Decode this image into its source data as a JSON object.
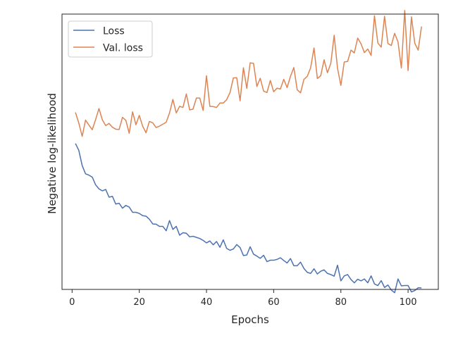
{
  "chart_data": {
    "type": "line",
    "title": "",
    "xlabel": "Epochs",
    "ylabel": "Negative log-likelihood",
    "xlim": [
      -3,
      109
    ],
    "ylim": [
      0,
      100
    ],
    "yticks_shown": false,
    "xticks": [
      0,
      20,
      40,
      60,
      80,
      100
    ],
    "xtick_labels": [
      "0",
      "20",
      "40",
      "60",
      "80",
      "100"
    ],
    "grid": false,
    "legend_position": "upper left",
    "series": [
      {
        "name": "Loss",
        "color": "#4c72b0",
        "x": [
          1,
          2,
          3,
          4,
          5,
          6,
          7,
          8,
          9,
          10,
          11,
          12,
          13,
          14,
          15,
          16,
          17,
          18,
          19,
          20,
          21,
          22,
          23,
          24,
          25,
          26,
          27,
          28,
          29,
          30,
          31,
          32,
          33,
          34,
          35,
          36,
          37,
          38,
          39,
          40,
          41,
          42,
          43,
          44,
          45,
          46,
          47,
          48,
          49,
          50,
          51,
          52,
          53,
          54,
          55,
          56,
          57,
          58,
          59,
          60,
          61,
          62,
          63,
          64,
          65,
          66,
          67,
          68,
          69,
          70,
          71,
          72,
          73,
          74,
          75,
          76,
          77,
          78,
          79,
          80,
          81,
          82,
          83,
          84,
          85,
          86,
          87,
          88,
          89,
          90,
          91,
          92,
          93,
          94,
          95,
          96,
          97,
          98,
          99,
          100,
          101,
          102,
          103,
          104
        ],
        "y": [
          53.0,
          50.5,
          45.0,
          42.0,
          41.5,
          40.8,
          38.0,
          36.5,
          35.8,
          36.3,
          33.5,
          33.8,
          31.0,
          31.3,
          29.5,
          30.5,
          29.9,
          28.0,
          28.0,
          27.6,
          26.8,
          26.6,
          25.5,
          23.8,
          23.7,
          22.9,
          22.9,
          21.3,
          25.0,
          21.8,
          22.9,
          19.7,
          20.6,
          20.4,
          19.1,
          19.3,
          18.9,
          18.5,
          17.8,
          16.9,
          17.6,
          16.2,
          17.4,
          15.3,
          18.0,
          14.9,
          14.2,
          14.7,
          16.3,
          15.2,
          12.3,
          12.5,
          15.5,
          12.8,
          12.1,
          11.3,
          12.4,
          10.1,
          10.6,
          10.6,
          10.9,
          11.5,
          10.5,
          9.6,
          11.2,
          8.6,
          8.6,
          9.9,
          7.6,
          6.2,
          5.8,
          7.5,
          5.6,
          6.6,
          7.1,
          5.8,
          5.4,
          4.8,
          8.8,
          3.1,
          4.9,
          5.4,
          3.6,
          2.4,
          3.7,
          3.1,
          3.8,
          2.4,
          4.9,
          2.0,
          1.4,
          3.2,
          0.7,
          1.6,
          -0.2,
          -1.2,
          3.8,
          1.3,
          1.4,
          1.4,
          -0.9,
          -0.4,
          0.6,
          0.5
        ]
      },
      {
        "name": "Val. loss",
        "color": "#dd8452",
        "x": [
          1,
          2,
          3,
          4,
          5,
          6,
          7,
          8,
          9,
          10,
          11,
          12,
          13,
          14,
          15,
          16,
          17,
          18,
          19,
          20,
          21,
          22,
          23,
          24,
          25,
          26,
          27,
          28,
          29,
          30,
          31,
          32,
          33,
          34,
          35,
          36,
          37,
          38,
          39,
          40,
          41,
          42,
          43,
          44,
          45,
          46,
          47,
          48,
          49,
          50,
          51,
          52,
          53,
          54,
          55,
          56,
          57,
          58,
          59,
          60,
          61,
          62,
          63,
          64,
          65,
          66,
          67,
          68,
          69,
          70,
          71,
          72,
          73,
          74,
          75,
          76,
          77,
          78,
          79,
          80,
          81,
          82,
          83,
          84,
          85,
          86,
          87,
          88,
          89,
          90,
          91,
          92,
          93,
          94,
          95,
          96,
          97,
          98,
          99,
          100,
          101,
          102,
          103,
          104
        ],
        "y": [
          64.3,
          60.4,
          55.6,
          61.5,
          59.7,
          58.0,
          61.7,
          65.7,
          61.6,
          59.5,
          60.3,
          58.9,
          58.2,
          58.1,
          62.5,
          61.4,
          56.7,
          64.5,
          59.8,
          63.2,
          59.3,
          56.9,
          61.0,
          60.5,
          58.8,
          59.3,
          60.0,
          60.7,
          64.1,
          69.0,
          64.1,
          66.5,
          66.1,
          71.0,
          65.2,
          65.5,
          69.5,
          69.5,
          65.0,
          77.6,
          66.5,
          66.4,
          66.1,
          67.7,
          67.7,
          68.9,
          71.5,
          76.8,
          76.9,
          68.5,
          80.5,
          73.0,
          82.3,
          82.1,
          73.7,
          76.7,
          72.0,
          71.5,
          75.9,
          71.8,
          73.1,
          72.8,
          76.3,
          73.3,
          77.4,
          80.6,
          72.5,
          71.4,
          76.3,
          77.4,
          80.5,
          87.7,
          76.6,
          77.6,
          83.4,
          78.7,
          82.1,
          92.3,
          80.3,
          74.1,
          82.6,
          82.8,
          86.9,
          85.9,
          91.3,
          89.2,
          86.0,
          87.3,
          85.0,
          99.4,
          89.5,
          88.0,
          99.2,
          89.3,
          88.6,
          93.0,
          89.9,
          80.4,
          101.3,
          79.5,
          99.0,
          89.4,
          86.9,
          95.5
        ]
      }
    ]
  }
}
